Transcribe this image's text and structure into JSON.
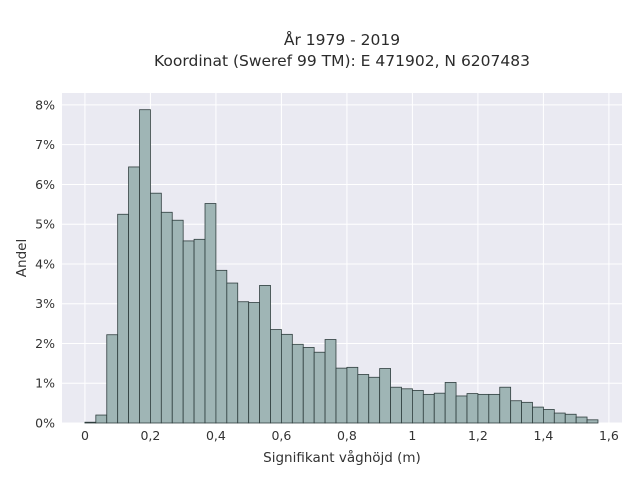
{
  "chart_data": {
    "type": "bar",
    "title": "År 1979 - 2019",
    "subtitle": "Koordinat (Sweref 99 TM): E 471902, N 6207483",
    "xlabel": "Signifikant våghöjd (m)",
    "ylabel": "Andel",
    "xlim": [
      -0.07,
      1.64
    ],
    "ylim": [
      0,
      8.3
    ],
    "x_ticks": [
      0,
      0.2,
      0.4,
      0.6,
      0.8,
      1,
      1.2,
      1.4,
      1.6
    ],
    "x_tick_labels": [
      "0",
      "0,2",
      "0,4",
      "0,6",
      "0,8",
      "1",
      "1,2",
      "1,4",
      "1,6"
    ],
    "y_ticks": [
      0,
      1,
      2,
      3,
      4,
      5,
      6,
      7,
      8
    ],
    "y_tick_labels": [
      "0%",
      "1%",
      "2%",
      "3%",
      "4%",
      "5%",
      "6%",
      "7%",
      "8%"
    ],
    "grid": true,
    "bin_width": 0.0333,
    "bin_starts": [
      0.0,
      0.0333,
      0.0667,
      0.1,
      0.1333,
      0.1667,
      0.2,
      0.2333,
      0.2667,
      0.3,
      0.3333,
      0.3667,
      0.4,
      0.4333,
      0.4667,
      0.5,
      0.5333,
      0.5667,
      0.6,
      0.6333,
      0.6667,
      0.7,
      0.7333,
      0.7667,
      0.8,
      0.8333,
      0.8667,
      0.9,
      0.9333,
      0.9667,
      1.0,
      1.0333,
      1.0667,
      1.1,
      1.1333,
      1.1667,
      1.2,
      1.2333,
      1.2667,
      1.3,
      1.3333,
      1.3667,
      1.4,
      1.4333,
      1.4667,
      1.5,
      1.5333
    ],
    "values": [
      0.02,
      0.2,
      2.22,
      5.25,
      6.44,
      7.88,
      5.78,
      5.3,
      5.1,
      4.58,
      4.62,
      5.52,
      3.84,
      3.52,
      3.05,
      3.03,
      3.46,
      2.35,
      2.23,
      1.98,
      1.9,
      1.78,
      2.1,
      1.38,
      1.4,
      1.22,
      1.15,
      1.37,
      0.9,
      0.86,
      0.82,
      0.72,
      0.75,
      1.02,
      0.68,
      0.74,
      0.72,
      0.72,
      0.9,
      0.56,
      0.52,
      0.4,
      0.34,
      0.25,
      0.22,
      0.15,
      0.08
    ],
    "colors": {
      "plot_bg": "#eaeaf2",
      "grid": "#ffffff",
      "bar_fill": "#9fb5b5",
      "bar_edge": "#2f3e3e"
    }
  }
}
